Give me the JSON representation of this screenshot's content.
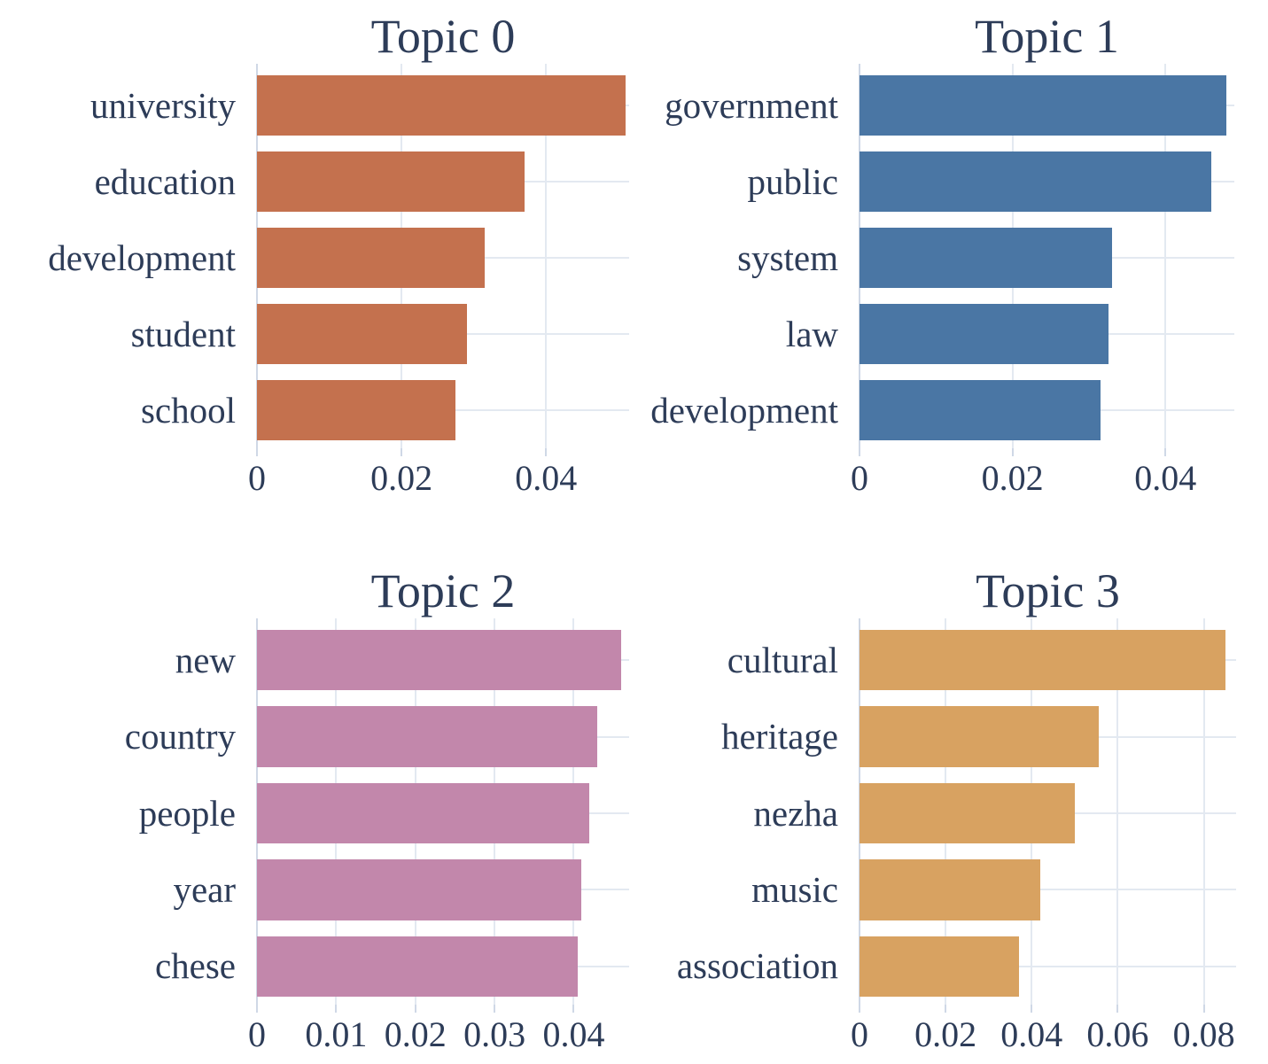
{
  "figure": {
    "background": "#ffffff",
    "text_color": "#2d3c58",
    "grid_color": "#e3e9f1",
    "axis_color": "#cfd8e6"
  },
  "chart_data": [
    {
      "type": "bar",
      "orientation": "horizontal",
      "title": "Topic 0",
      "categories": [
        "university",
        "education",
        "development",
        "student",
        "school"
      ],
      "values": [
        0.051,
        0.037,
        0.0315,
        0.029,
        0.0275
      ],
      "bar_color": "#c4714e",
      "xticks": [
        0,
        0.02,
        0.04
      ],
      "xtick_labels": [
        "0",
        "0.02",
        "0.04"
      ],
      "xlim": [
        0,
        0.0515
      ],
      "xlabel": "",
      "ylabel": "",
      "grid": true,
      "legend_position": "none"
    },
    {
      "type": "bar",
      "orientation": "horizontal",
      "title": "Topic 1",
      "categories": [
        "government",
        "public",
        "system",
        "law",
        "development"
      ],
      "values": [
        0.048,
        0.046,
        0.033,
        0.0325,
        0.0315
      ],
      "bar_color": "#4a76a4",
      "xticks": [
        0,
        0.02,
        0.04
      ],
      "xtick_labels": [
        "0",
        "0.02",
        "0.04"
      ],
      "xlim": [
        0,
        0.049
      ],
      "xlabel": "",
      "ylabel": "",
      "grid": true,
      "legend_position": "none"
    },
    {
      "type": "bar",
      "orientation": "horizontal",
      "title": "Topic 2",
      "categories": [
        "new",
        "country",
        "people",
        "year",
        "chese"
      ],
      "values": [
        0.046,
        0.043,
        0.042,
        0.041,
        0.0405
      ],
      "bar_color": "#c287ab",
      "xticks": [
        0,
        0.01,
        0.02,
        0.03,
        0.04
      ],
      "xtick_labels": [
        "0",
        "0.01",
        "0.02",
        "0.03",
        "0.04"
      ],
      "xlim": [
        0,
        0.047
      ],
      "xlabel": "",
      "ylabel": "",
      "grid": true,
      "legend_position": "none"
    },
    {
      "type": "bar",
      "orientation": "horizontal",
      "title": "Topic 3",
      "categories": [
        "cultural",
        "heritage",
        "nezha",
        "music",
        "association"
      ],
      "values": [
        0.085,
        0.0555,
        0.05,
        0.042,
        0.037
      ],
      "bar_color": "#d8a261",
      "xticks": [
        0,
        0.02,
        0.04,
        0.06,
        0.08
      ],
      "xtick_labels": [
        "0",
        "0.02",
        "0.04",
        "0.06",
        "0.08"
      ],
      "xlim": [
        0,
        0.0875
      ],
      "xlabel": "",
      "ylabel": "",
      "grid": true,
      "legend_position": "none"
    }
  ]
}
